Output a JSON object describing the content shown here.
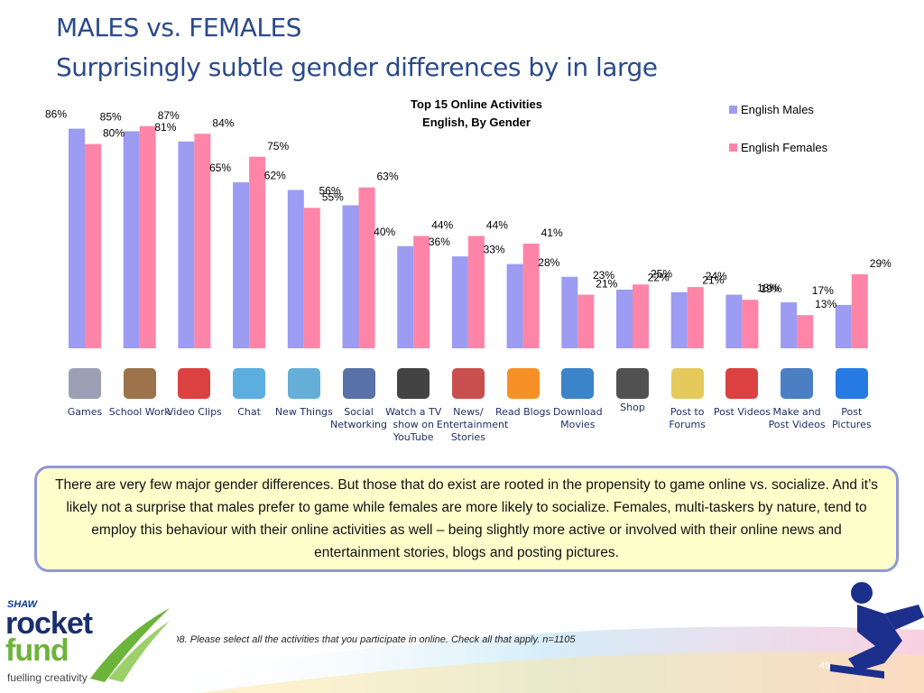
{
  "slide": {
    "title": "MALES vs. FEMALES",
    "subtitle": "Surprisingly subtle gender differences by in large",
    "note": "There are very few major gender differences. But those that do exist are rooted in the propensity to game online vs. socialize. And it’s likely not a surprise that males prefer to game while females are more likely to socialize. Females, multi-taskers by nature, tend to employ this behaviour with their online activities as well – being slightly more active or involved with their online news and entertainment stories, blogs and posting pictures.",
    "footnote": "Q8. Please select all the activities that you participate in online. Check all that apply. n=1105",
    "page_number": "49"
  },
  "logo": {
    "brand": "SHAW",
    "line1": "rocket",
    "line2": "fund",
    "tagline": "fuelling creativity"
  },
  "chart_data": {
    "type": "bar",
    "title": "Top 15 Online Activities",
    "subtitle": "English, By Gender",
    "categories": [
      "Games",
      "School Work",
      "Video Clips",
      "Chat",
      "New Things",
      "Social Networking",
      "Watch a TV show on YouTube",
      "News/ Entertainment Stories",
      "Read Blogs",
      "Download Movies",
      "Shop",
      "Post to Forums",
      "Post Videos",
      "Make and Post Videos",
      "Post Pictures"
    ],
    "category_icons": [
      "game-controller-icon",
      "books-apple-icon",
      "youtube-logo-icon",
      "chat-people-icon",
      "learn-bulb-icon",
      "facebook-icon",
      "tv-youtube-icon",
      "news-icon",
      "blogger-icon",
      "film-icon",
      "amazon-logo-icon",
      "message-board-icon",
      "youtube-logo-icon",
      "camera-icon",
      "flickr-icon"
    ],
    "series": [
      {
        "name": "English Males",
        "color": "#9c9cf2",
        "values": [
          86,
          85,
          81,
          65,
          62,
          56,
          40,
          36,
          33,
          28,
          23,
          22,
          21,
          18,
          17
        ]
      },
      {
        "name": "English Females",
        "color": "#ff85a8",
        "values": [
          80,
          87,
          84,
          75,
          55,
          63,
          44,
          44,
          41,
          21,
          25,
          24,
          19,
          13,
          29
        ]
      }
    ],
    "value_suffix": "%",
    "ylim": [
      0,
      100
    ],
    "grid": false,
    "legend_position": "top-right"
  }
}
